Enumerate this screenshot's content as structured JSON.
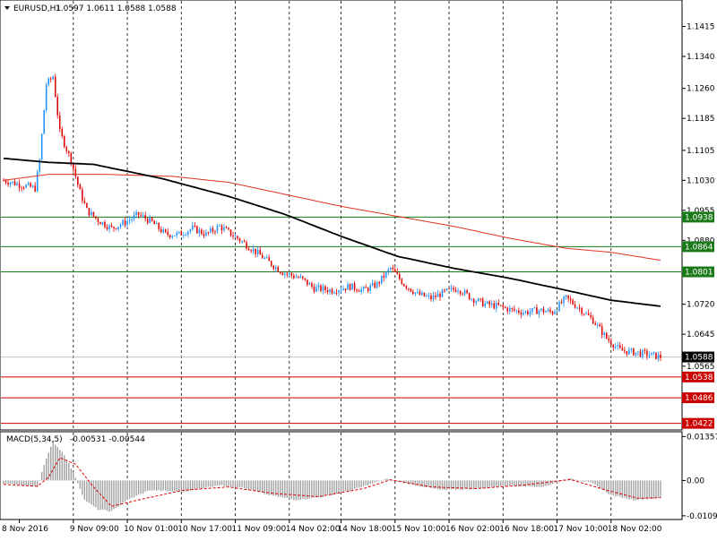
{
  "header": {
    "symbol": "EURUSD,H1",
    "ohlc": "1.0597 1.0611 1.0588 1.0588"
  },
  "colors": {
    "bull": "#1e90ff",
    "bear": "#e00000",
    "ma_fast": "#000000",
    "ma_slow": "#e03020",
    "support_line": "#cc0000",
    "resistance_line": "#1a7a1a",
    "grid": "#000000",
    "macd_hist": "#a0a0a0",
    "macd_signal": "#e00000"
  },
  "chart_data": [
    {
      "type": "candlestick",
      "title": "EURUSD,H1",
      "ohlc_text": "1.0597 1.0611 1.0588 1.0588",
      "ylim": [
        1.041,
        1.147
      ],
      "y_ticks": [
        "1.1415",
        "1.1340",
        "1.1260",
        "1.1185",
        "1.1105",
        "1.1030",
        "1.0955",
        "1.0880",
        "1.0800",
        "1.0720",
        "1.0645",
        "1.0565"
      ],
      "x_ticks": [
        "8 Nov 2016",
        "9 Nov 09:00",
        "10 Nov 01:00",
        "10 Nov 17:00",
        "11 Nov 09:00",
        "14 Nov 02:00",
        "14 Nov 18:00",
        "15 Nov 10:00",
        "16 Nov 02:00",
        "16 Nov 18:00",
        "17 Nov 10:00",
        "18 Nov 02:00"
      ],
      "price_tag": "1.0588",
      "resistance_levels": [
        {
          "label": "1.0938",
          "value": 1.0938
        },
        {
          "label": "1.0864",
          "value": 1.0864
        },
        {
          "label": "1.0801",
          "value": 1.0801
        }
      ],
      "support_levels": [
        {
          "label": "1.0538",
          "value": 1.0538
        },
        {
          "label": "1.0486",
          "value": 1.0486
        },
        {
          "label": "1.0422",
          "value": 1.0422
        }
      ],
      "close_path": [
        [
          0,
          1.103
        ],
        [
          14,
          1.101
        ],
        [
          16,
          1.108
        ],
        [
          19,
          1.127
        ],
        [
          22,
          1.129
        ],
        [
          25,
          1.115
        ],
        [
          30,
          1.108
        ],
        [
          34,
          1.1
        ],
        [
          37,
          1.0955
        ],
        [
          42,
          1.093
        ],
        [
          48,
          1.091
        ],
        [
          54,
          1.0925
        ],
        [
          60,
          1.0945
        ],
        [
          66,
          1.0925
        ],
        [
          72,
          1.0895
        ],
        [
          78,
          1.0895
        ],
        [
          84,
          1.091
        ],
        [
          90,
          1.0895
        ],
        [
          96,
          1.0915
        ],
        [
          104,
          1.0885
        ],
        [
          110,
          1.086
        ],
        [
          118,
          1.0825
        ],
        [
          124,
          1.08
        ],
        [
          132,
          1.0785
        ],
        [
          138,
          1.076
        ],
        [
          146,
          1.0755
        ],
        [
          154,
          1.0765
        ],
        [
          160,
          1.0755
        ],
        [
          166,
          1.077
        ],
        [
          172,
          1.081
        ],
        [
          178,
          1.077
        ],
        [
          184,
          1.0745
        ],
        [
          190,
          1.0735
        ],
        [
          196,
          1.075
        ],
        [
          202,
          1.076
        ],
        [
          208,
          1.0735
        ],
        [
          214,
          1.072
        ],
        [
          220,
          1.0715
        ],
        [
          226,
          1.0705
        ],
        [
          232,
          1.07
        ],
        [
          238,
          1.0705
        ],
        [
          244,
          1.07
        ],
        [
          250,
          1.0735
        ],
        [
          256,
          1.071
        ],
        [
          262,
          1.068
        ],
        [
          268,
          1.0635
        ],
        [
          274,
          1.0605
        ],
        [
          280,
          1.06
        ],
        [
          286,
          1.0595
        ],
        [
          292,
          1.0588
        ]
      ],
      "ma_fast_points": [
        [
          0,
          1.1085
        ],
        [
          20,
          1.1075
        ],
        [
          40,
          1.107
        ],
        [
          70,
          1.1035
        ],
        [
          100,
          1.099
        ],
        [
          125,
          1.0945
        ],
        [
          150,
          1.089
        ],
        [
          175,
          1.084
        ],
        [
          200,
          1.081
        ],
        [
          225,
          1.0785
        ],
        [
          250,
          1.0755
        ],
        [
          270,
          1.073
        ],
        [
          292,
          1.0715
        ]
      ],
      "ma_slow_points": [
        [
          0,
          1.103
        ],
        [
          20,
          1.1045
        ],
        [
          45,
          1.1045
        ],
        [
          75,
          1.104
        ],
        [
          100,
          1.1025
        ],
        [
          125,
          1.0995
        ],
        [
          150,
          1.0965
        ],
        [
          175,
          1.094
        ],
        [
          200,
          1.0915
        ],
        [
          225,
          1.0885
        ],
        [
          250,
          1.086
        ],
        [
          270,
          1.085
        ],
        [
          292,
          1.083
        ]
      ],
      "bar_count": 293
    },
    {
      "type": "bar",
      "title": "MACD(5,34,5)",
      "values_text": "-0.00531 -0.00544",
      "ylim": [
        -0.0115,
        0.0145
      ],
      "y_ticks": [
        "0.01357",
        "0.00",
        "-0.01091"
      ],
      "hist_path": [
        [
          0,
          -0.001
        ],
        [
          10,
          -0.0015
        ],
        [
          15,
          -0.002
        ],
        [
          18,
          0.005
        ],
        [
          22,
          0.012
        ],
        [
          27,
          0.008
        ],
        [
          32,
          0.001
        ],
        [
          36,
          -0.006
        ],
        [
          42,
          -0.009
        ],
        [
          48,
          -0.0095
        ],
        [
          55,
          -0.006
        ],
        [
          65,
          -0.003
        ],
        [
          80,
          -0.0035
        ],
        [
          95,
          -0.0015
        ],
        [
          105,
          -0.002
        ],
        [
          118,
          -0.0045
        ],
        [
          130,
          -0.006
        ],
        [
          142,
          -0.005
        ],
        [
          155,
          -0.003
        ],
        [
          170,
          0.0005
        ],
        [
          180,
          -0.001
        ],
        [
          195,
          -0.003
        ],
        [
          210,
          -0.0025
        ],
        [
          225,
          -0.0015
        ],
        [
          240,
          -0.002
        ],
        [
          252,
          0.0008
        ],
        [
          262,
          -0.001
        ],
        [
          270,
          -0.0045
        ],
        [
          280,
          -0.006
        ],
        [
          292,
          -0.0054
        ]
      ],
      "signal_path": [
        [
          0,
          -0.0012
        ],
        [
          15,
          -0.0018
        ],
        [
          20,
          0.001
        ],
        [
          25,
          0.007
        ],
        [
          32,
          0.005
        ],
        [
          40,
          -0.002
        ],
        [
          48,
          -0.008
        ],
        [
          60,
          -0.006
        ],
        [
          80,
          -0.003
        ],
        [
          100,
          -0.002
        ],
        [
          120,
          -0.004
        ],
        [
          140,
          -0.005
        ],
        [
          160,
          -0.0025
        ],
        [
          172,
          0.0002
        ],
        [
          190,
          -0.002
        ],
        [
          210,
          -0.0025
        ],
        [
          230,
          -0.0015
        ],
        [
          252,
          0.0003
        ],
        [
          268,
          -0.003
        ],
        [
          282,
          -0.0055
        ],
        [
          292,
          -0.0053
        ]
      ]
    }
  ]
}
